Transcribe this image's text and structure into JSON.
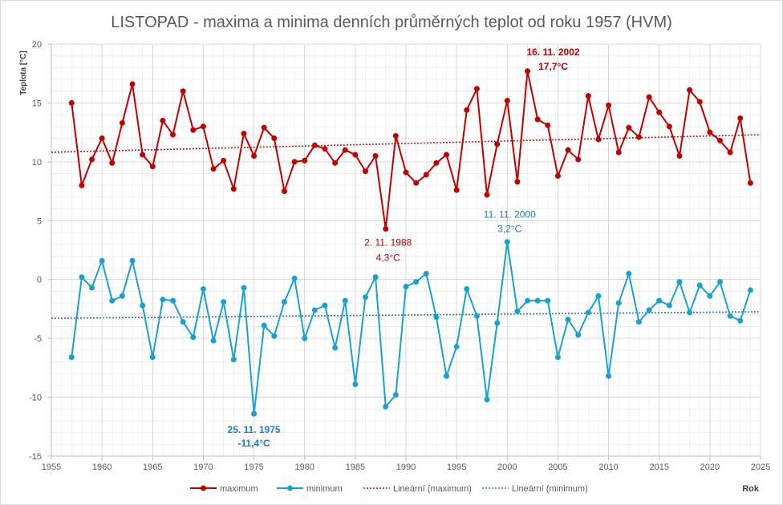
{
  "chart_data": {
    "type": "line",
    "title": "LISTOPAD - maxima a minima denních průměrných teplot od roku 1957 (HVM)",
    "xlabel": "Rok",
    "ylabel": "Teplota [°C]",
    "xlim": [
      1955,
      2025
    ],
    "ylim": [
      -15,
      20
    ],
    "xticks": [
      1955,
      1960,
      1965,
      1970,
      1975,
      1980,
      1985,
      1990,
      1995,
      2000,
      2005,
      2010,
      2015,
      2020,
      2025
    ],
    "yticks": [
      -15,
      -10,
      -5,
      0,
      5,
      10,
      15,
      20
    ],
    "grid": true,
    "legend": "bottom",
    "x": [
      1957,
      1958,
      1959,
      1960,
      1961,
      1962,
      1963,
      1964,
      1965,
      1966,
      1967,
      1968,
      1969,
      1970,
      1971,
      1972,
      1973,
      1974,
      1975,
      1976,
      1977,
      1978,
      1979,
      1980,
      1981,
      1982,
      1983,
      1984,
      1985,
      1986,
      1987,
      1988,
      1989,
      1990,
      1991,
      1992,
      1993,
      1994,
      1995,
      1996,
      1997,
      1998,
      1999,
      2000,
      2001,
      2002,
      2003,
      2004,
      2005,
      2006,
      2007,
      2008,
      2009,
      2010,
      2011,
      2012,
      2013,
      2014,
      2015,
      2016,
      2017,
      2018,
      2019,
      2020,
      2021,
      2022,
      2023,
      2024
    ],
    "series": [
      {
        "name": "maximum",
        "color": "#c00000",
        "values": [
          15.0,
          8.0,
          10.2,
          12.0,
          9.9,
          13.3,
          16.6,
          10.6,
          9.6,
          13.5,
          12.3,
          16.0,
          12.7,
          13.0,
          9.4,
          10.1,
          7.7,
          12.4,
          10.5,
          12.9,
          12.0,
          7.5,
          10.0,
          10.1,
          11.4,
          11.1,
          9.9,
          11.0,
          10.6,
          9.2,
          10.5,
          4.3,
          12.2,
          9.1,
          8.2,
          8.9,
          9.9,
          10.6,
          7.6,
          14.4,
          16.2,
          7.2,
          11.5,
          15.2,
          8.3,
          17.7,
          13.6,
          13.1,
          8.8,
          11.0,
          10.2,
          15.6,
          11.9,
          14.8,
          10.8,
          12.9,
          12.1,
          15.5,
          14.2,
          13.0,
          10.5,
          16.1,
          15.1,
          12.5,
          11.8,
          10.8,
          13.7,
          8.2
        ]
      },
      {
        "name": "minimum",
        "color": "#1aa1d2",
        "values": [
          -6.6,
          0.2,
          -0.7,
          1.6,
          -1.8,
          -1.4,
          1.6,
          -2.2,
          -6.6,
          -1.7,
          -1.8,
          -3.6,
          -4.9,
          -0.8,
          -5.2,
          -1.9,
          -6.8,
          -0.7,
          -11.4,
          -3.9,
          -4.8,
          -1.9,
          0.1,
          -5.0,
          -2.6,
          -2.2,
          -5.8,
          -1.8,
          -8.9,
          -1.5,
          0.2,
          -10.8,
          -9.8,
          -0.6,
          -0.2,
          0.5,
          -3.2,
          -8.2,
          -5.7,
          -0.8,
          -3.1,
          -10.2,
          -3.7,
          3.2,
          -2.7,
          -1.8,
          -1.8,
          -1.8,
          -6.6,
          -3.4,
          -4.7,
          -2.8,
          -1.4,
          -8.2,
          -2.0,
          0.5,
          -3.6,
          -2.6,
          -1.8,
          -2.2,
          -0.2,
          -2.8,
          -0.5,
          -1.4,
          -0.2,
          -3.1,
          -3.5,
          -0.9
        ]
      }
    ],
    "trendlines": [
      {
        "name": "Lineární (maximum)",
        "series_index": 0,
        "color": "#b0171f"
      },
      {
        "name": "Lineární (minimum)",
        "series_index": 1,
        "color": "#2e75b6"
      }
    ],
    "annotations": [
      {
        "series_index": 0,
        "x": 2002,
        "label": "16. 11. 2002",
        "value_label": "17,7°C",
        "bold": true,
        "color": "#c00000"
      },
      {
        "series_index": 0,
        "x": 1988,
        "label": "2. 11. 1988",
        "value_label": "4,3°C",
        "bold": false,
        "color": "#c00000"
      },
      {
        "series_index": 1,
        "x": 2000,
        "label": "11. 11. 2000",
        "value_label": "3,2°C",
        "bold": false,
        "color": "#1f7cb8"
      },
      {
        "series_index": 1,
        "x": 1975,
        "label": "25. 11. 1975",
        "value_label": "-11,4°C",
        "bold": true,
        "color": "#1f7cb8"
      }
    ]
  }
}
